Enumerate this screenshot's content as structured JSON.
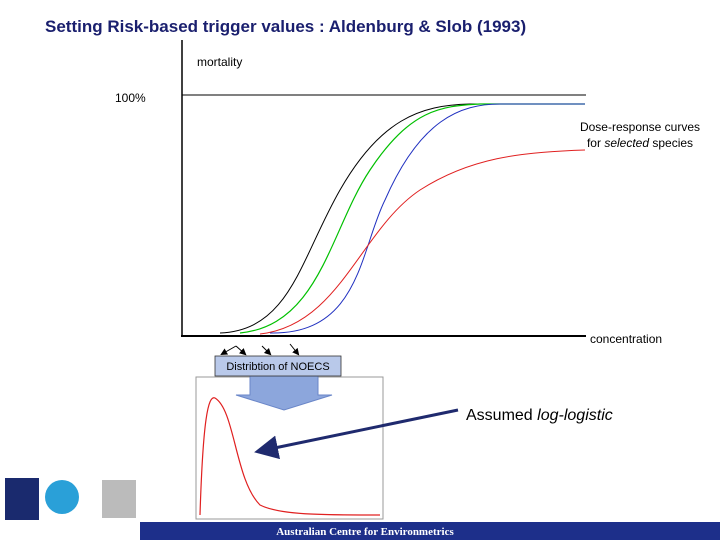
{
  "header": {
    "title": "Setting Risk-based trigger values : Aldenburg & Slob (1993)"
  },
  "diagram": {
    "y_axis_label": "mortality",
    "top_label": "100%",
    "x_axis_label": "concentration",
    "curves_note": {
      "line1": "Dose-response curves",
      "line2": [
        "for",
        "selected",
        "species"
      ]
    },
    "distribution_label": "Distribtion of NOECS",
    "assumed_note": [
      "Assumed",
      "log-logistic"
    ]
  },
  "footer": {
    "text": "Australian Centre for Environmetrics"
  }
}
